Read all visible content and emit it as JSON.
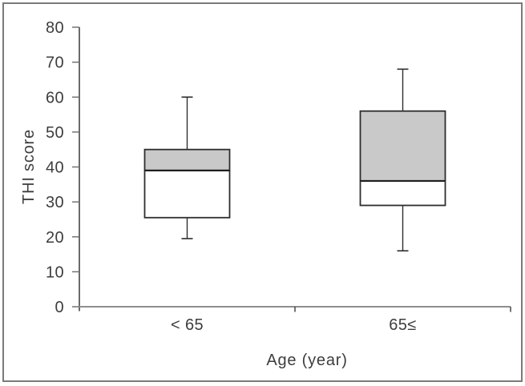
{
  "figure": {
    "background": "#ffffff",
    "frame_border_color": "#7a7a7a"
  },
  "chart_data": {
    "type": "boxplot",
    "title": "",
    "xlabel": "Age (year)",
    "ylabel": "THI score",
    "ylim": [
      0,
      80
    ],
    "yticks": [
      0,
      10,
      20,
      30,
      40,
      50,
      60,
      70,
      80
    ],
    "categories": [
      "< 65",
      "65≤"
    ],
    "series": [
      {
        "category": "< 65",
        "whisker_low": 19.5,
        "q1": 25.5,
        "median": 39,
        "q3": 45,
        "whisker_high": 60
      },
      {
        "category": "65≤",
        "whisker_low": 16,
        "q1": 29,
        "median": 36,
        "q3": 56,
        "whisker_high": 68
      }
    ],
    "grid": false,
    "legend": "none",
    "colors": {
      "box_fill_upper": "#c9c9c9",
      "box_fill_lower": "#ffffff",
      "box_border": "#2e2e2e",
      "median_line": "#1f1f1f",
      "whisker": "#2e2e2e",
      "y_axis": "#3a3a3a",
      "x_axis": "#8e8e8e",
      "tick": "#6a6a6a",
      "text": "#3d3d3d"
    }
  }
}
